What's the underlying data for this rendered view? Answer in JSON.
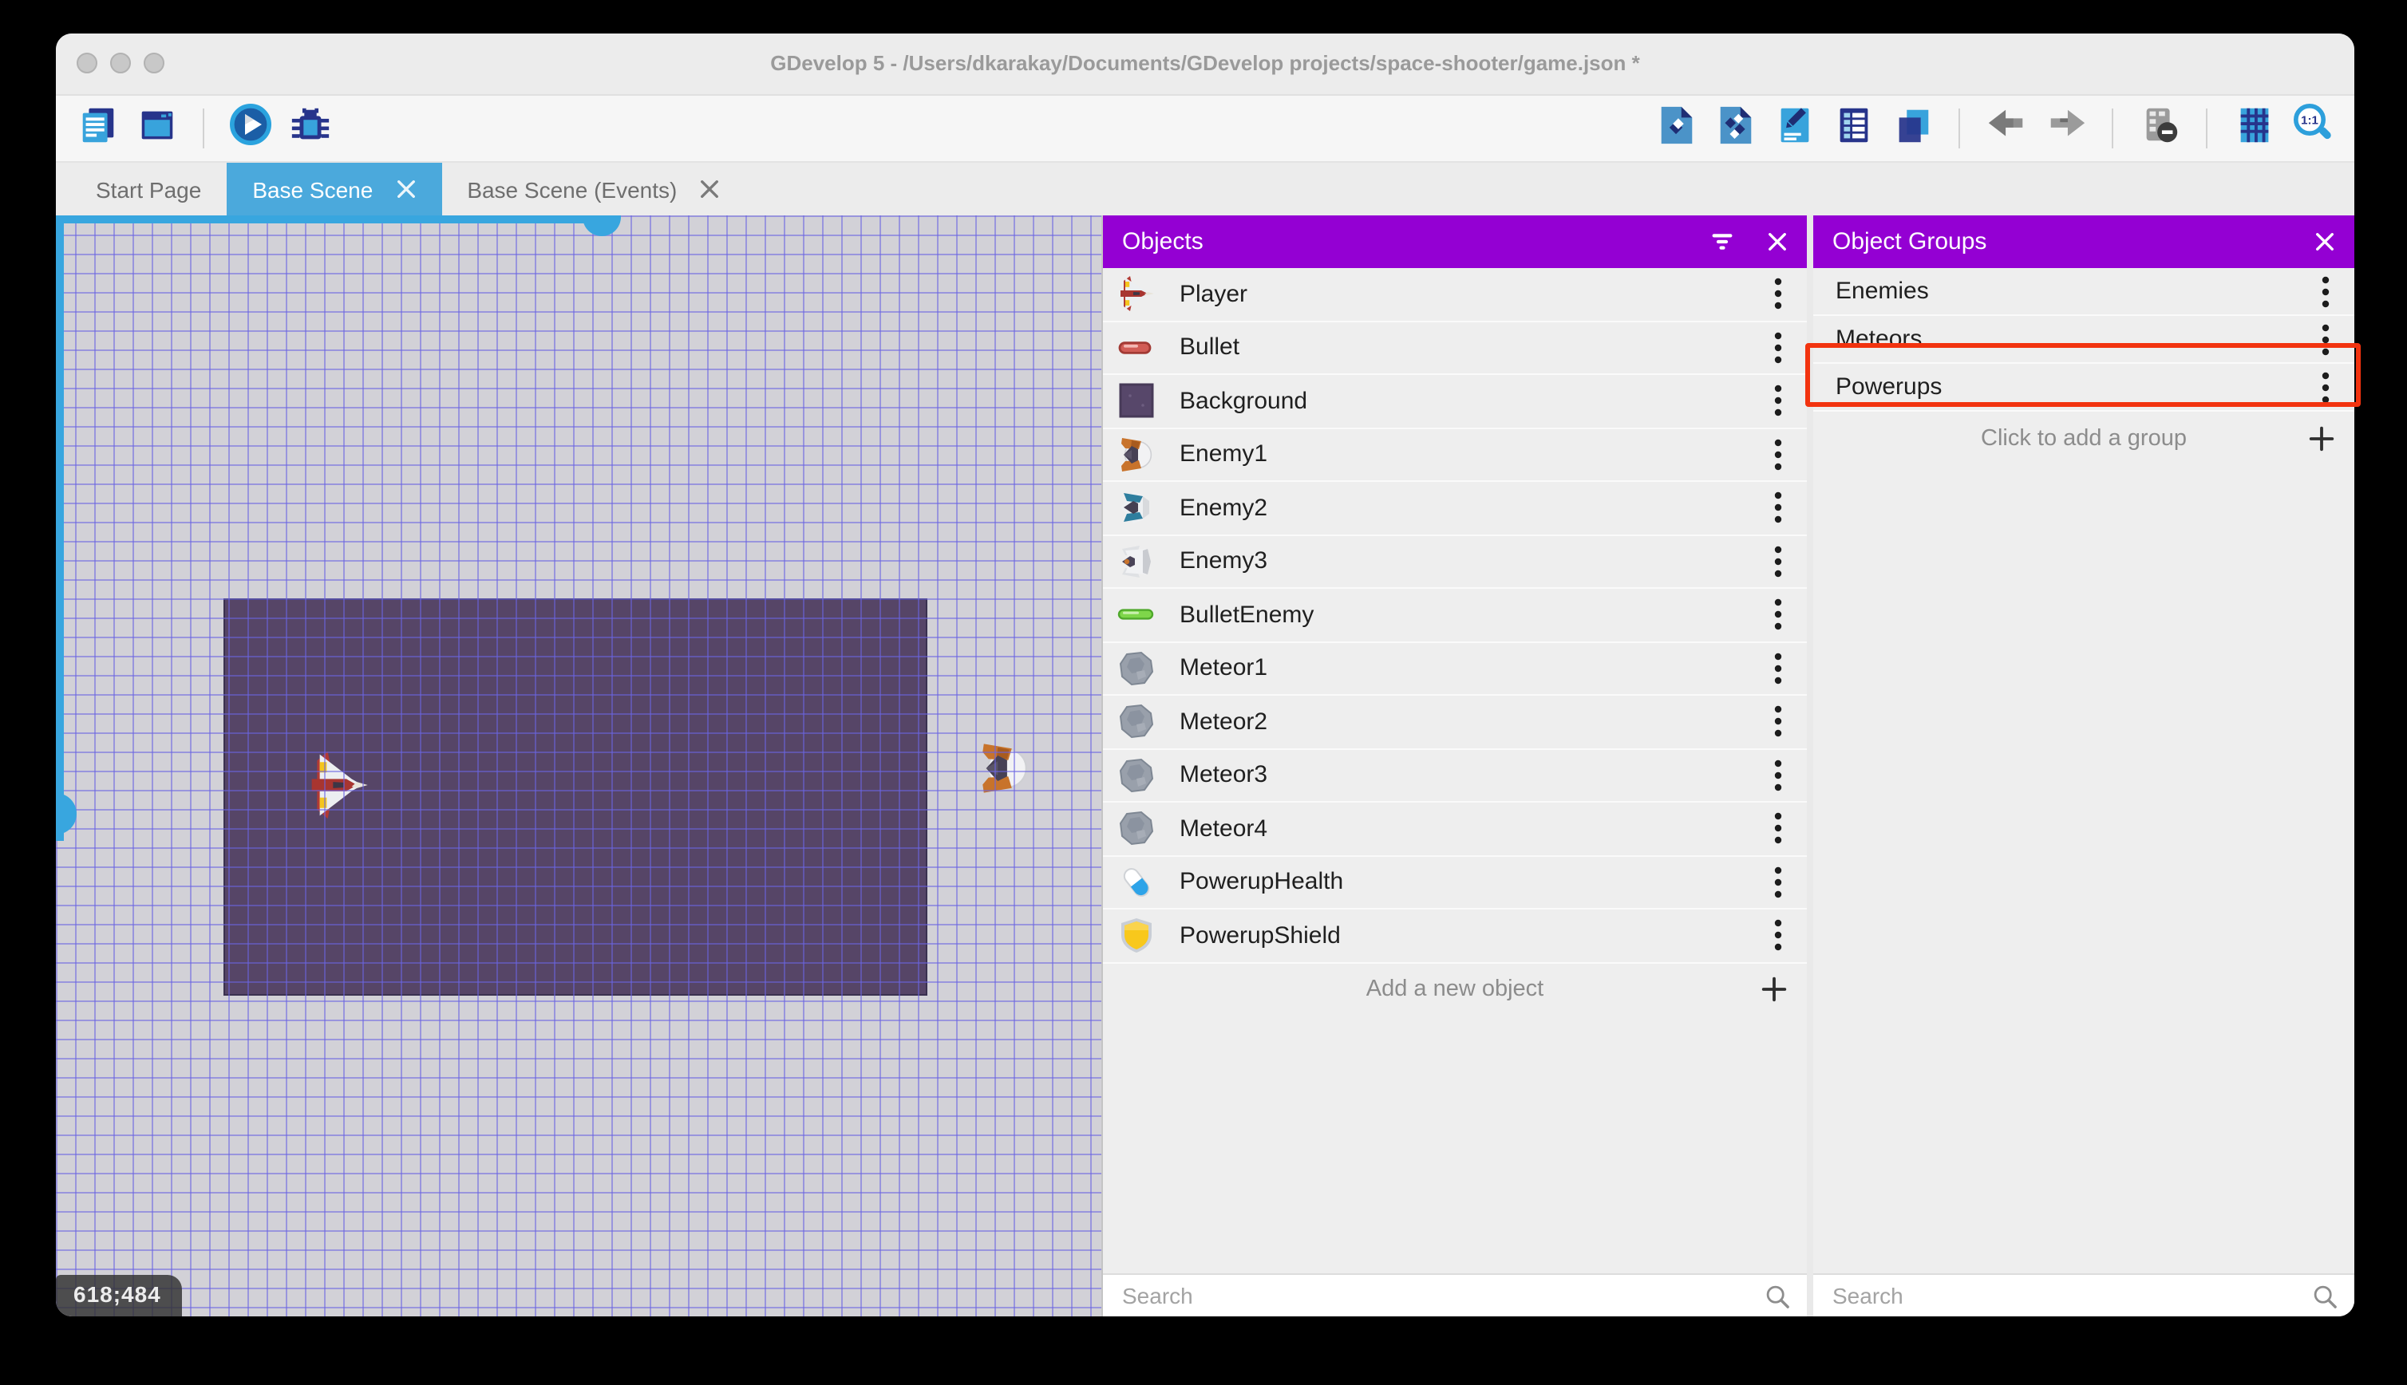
{
  "window": {
    "title": "GDevelop 5 - /Users/dkarakay/Documents/GDevelop projects/space-shooter/game.json *",
    "traffic_lights": [
      "close",
      "minimize",
      "zoom"
    ]
  },
  "toolbar": {
    "left": [
      {
        "id": "project-manager",
        "icon": "project-manager-icon"
      },
      {
        "id": "start-page-window",
        "icon": "window-icon"
      },
      {
        "sep": true
      },
      {
        "id": "launch-preview",
        "icon": "play-icon"
      },
      {
        "id": "launch-debugger",
        "icon": "debug-icon"
      }
    ],
    "right": [
      {
        "id": "open-objects-panel",
        "icon": "objects-panel-icon"
      },
      {
        "id": "open-object-groups-panel",
        "icon": "object-groups-panel-icon"
      },
      {
        "id": "open-properties-panel",
        "icon": "properties-icon"
      },
      {
        "id": "open-instances-list",
        "icon": "instances-list-icon"
      },
      {
        "id": "open-layers-panel",
        "icon": "layers-icon"
      },
      {
        "sep": true
      },
      {
        "id": "undo",
        "icon": "undo-icon"
      },
      {
        "id": "redo",
        "icon": "redo-icon"
      },
      {
        "sep": true
      },
      {
        "id": "toggle-mask",
        "icon": "mask-icon"
      },
      {
        "sep": true
      },
      {
        "id": "toggle-grid",
        "icon": "grid-icon"
      },
      {
        "id": "zoom-original",
        "icon": "zoom-1-1-icon"
      }
    ]
  },
  "tabs": [
    {
      "label": "Start Page",
      "active": false,
      "closable": false
    },
    {
      "label": "Base Scene",
      "active": true,
      "closable": true
    },
    {
      "label": "Base Scene (Events)",
      "active": false,
      "closable": true
    }
  ],
  "canvas": {
    "coordinates": "618;484"
  },
  "objects_panel": {
    "title": "Objects",
    "items": [
      {
        "name": "Player",
        "icon": "player-ship-icon"
      },
      {
        "name": "Bullet",
        "icon": "bullet-icon"
      },
      {
        "name": "Background",
        "icon": "background-icon"
      },
      {
        "name": "Enemy1",
        "icon": "enemy1-ship-icon"
      },
      {
        "name": "Enemy2",
        "icon": "enemy2-ship-icon"
      },
      {
        "name": "Enemy3",
        "icon": "enemy3-ship-icon"
      },
      {
        "name": "BulletEnemy",
        "icon": "bullet-enemy-icon"
      },
      {
        "name": "Meteor1",
        "icon": "meteor-icon"
      },
      {
        "name": "Meteor2",
        "icon": "meteor-icon"
      },
      {
        "name": "Meteor3",
        "icon": "meteor-icon"
      },
      {
        "name": "Meteor4",
        "icon": "meteor-icon"
      },
      {
        "name": "PowerupHealth",
        "icon": "powerup-health-icon"
      },
      {
        "name": "PowerupShield",
        "icon": "powerup-shield-icon"
      }
    ],
    "add_label": "Add a new object",
    "search_placeholder": "Search"
  },
  "object_groups_panel": {
    "title": "Object Groups",
    "items": [
      {
        "name": "Enemies",
        "highlighted": false
      },
      {
        "name": "Meteors",
        "highlighted": false
      },
      {
        "name": "Powerups",
        "highlighted": true
      }
    ],
    "add_label": "Click to add a group",
    "search_placeholder": "Search"
  },
  "colors": {
    "panel_header_purple": "#9400D3",
    "active_tab_blue": "#4BA9DC",
    "scrollbar_blue": "#38A6DF",
    "annotation_red": "#F2330F",
    "scene_background_purple": "#564567"
  }
}
